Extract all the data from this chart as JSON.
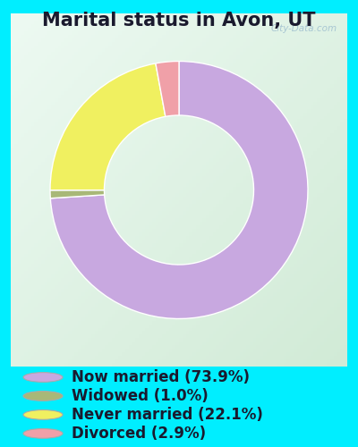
{
  "title": "Marital status in Avon, UT",
  "slices": [
    73.9,
    1.0,
    22.1,
    2.9
  ],
  "colors": [
    "#c8a8e0",
    "#a8b878",
    "#f0f060",
    "#f0a0a8"
  ],
  "labels": [
    "Now married (73.9%)",
    "Widowed (1.0%)",
    "Never married (22.1%)",
    "Divorced (2.9%)"
  ],
  "legend_colors": [
    "#c8a8e0",
    "#a8b878",
    "#f0f060",
    "#f0a0a8"
  ],
  "bg_outer": "#00eeff",
  "bg_chart_tl": "#e8f5f0",
  "bg_chart_br": "#d4ead8",
  "watermark": "City-Data.com",
  "title_fontsize": 15,
  "legend_fontsize": 12,
  "donut_width": 0.42,
  "startangle": 90
}
